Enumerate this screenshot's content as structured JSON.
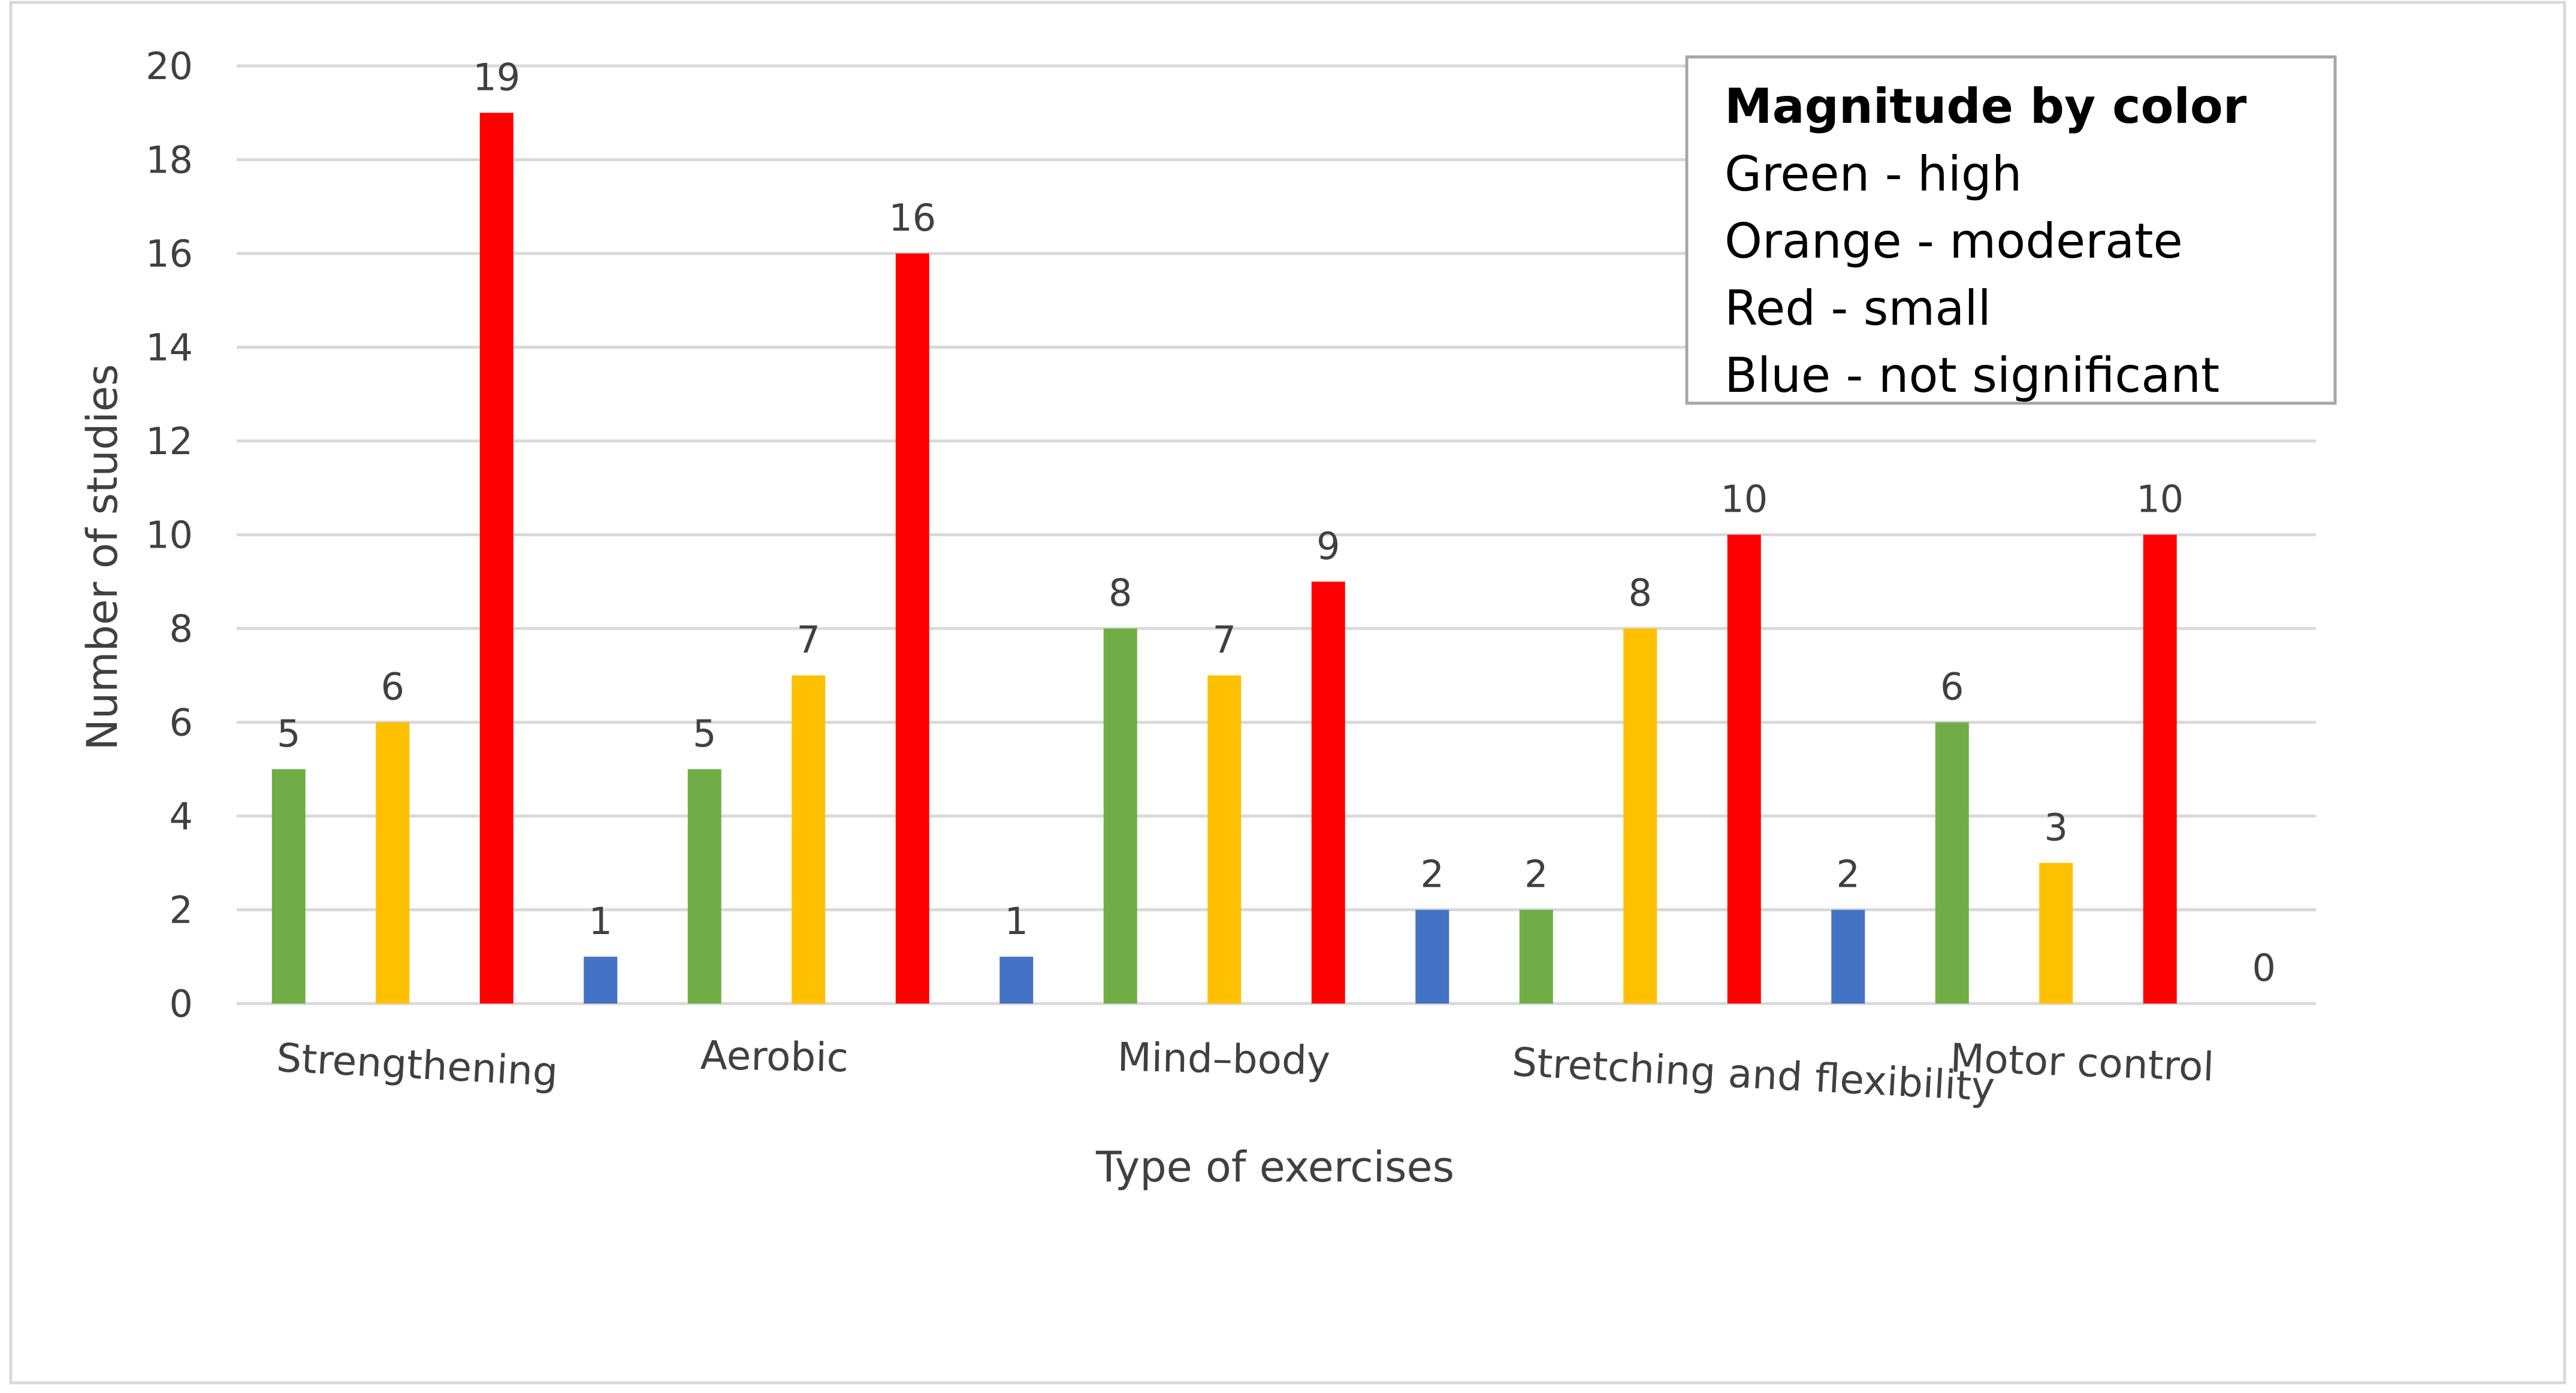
{
  "chart_data": {
    "type": "bar",
    "title": "",
    "xlabel": "Type of exercises",
    "ylabel": "Number of studies",
    "ylim": [
      0,
      20
    ],
    "yticks": [
      0,
      2,
      4,
      6,
      8,
      10,
      12,
      14,
      16,
      18,
      20
    ],
    "grid": true,
    "categories": [
      "Strengthening",
      "Aerobic",
      "Mind–body",
      "Stretching and flexibility",
      "Motor control"
    ],
    "series": [
      {
        "name": "Green - high",
        "color": "#70AD47",
        "values": [
          5,
          5,
          8,
          2,
          6
        ]
      },
      {
        "name": "Orange - moderate",
        "color": "#FFC000",
        "values": [
          6,
          7,
          7,
          8,
          3
        ]
      },
      {
        "name": "Red - small",
        "color": "#FF0000",
        "values": [
          19,
          16,
          9,
          10,
          10
        ]
      },
      {
        "name": "Blue - not significant",
        "color": "#4472C4",
        "values": [
          1,
          1,
          2,
          2,
          0
        ]
      }
    ],
    "legend": {
      "title": "Magnitude by color",
      "entries": [
        "Green - high",
        "Orange - moderate",
        "Red - small",
        "Blue - not significant"
      ],
      "position": "top-right"
    }
  },
  "colors": {
    "grid": "#D9D9D9",
    "text": "#404040",
    "frame": "#D9D9D9",
    "legend_border": "#A6A6A6"
  }
}
